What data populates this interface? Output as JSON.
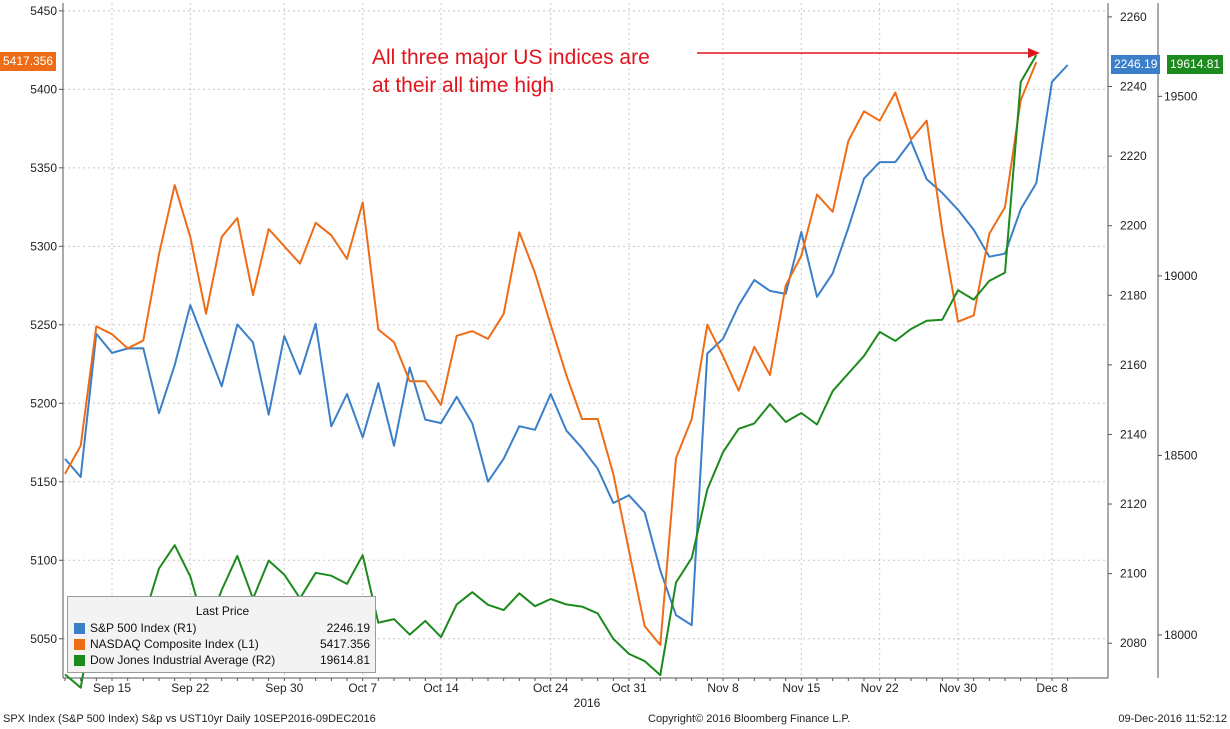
{
  "chart_data": {
    "type": "line",
    "x_tick_labels": [
      "Sep 15",
      "Sep 22",
      "Sep 30",
      "Oct 7",
      "Oct 14",
      "Oct 24",
      "Oct 31",
      "Nov 8",
      "Nov 15",
      "Nov 22",
      "Nov 30",
      "Dec 8"
    ],
    "x_tick_indices": [
      3,
      8,
      14,
      19,
      24,
      31,
      36,
      42,
      47,
      52,
      57,
      63
    ],
    "year_label": "2016",
    "axes": {
      "L1": {
        "ticks": [
          5050,
          5100,
          5150,
          5200,
          5250,
          5300,
          5350,
          5400,
          5450
        ],
        "range": [
          5025,
          5455
        ]
      },
      "R1": {
        "ticks": [
          2080,
          2100,
          2120,
          2140,
          2160,
          2180,
          2200,
          2220,
          2240,
          2260
        ],
        "range": [
          2070,
          2264
        ]
      },
      "R2": {
        "ticks": [
          18000,
          18500,
          19000,
          19500
        ],
        "range": [
          17880,
          19760
        ],
        "tick_labels": [
          "18000",
          "18500",
          "19000",
          "19500"
        ]
      }
    },
    "series": [
      {
        "name": "S&P 500 Index  (R1)",
        "axis": "R1",
        "color": "#3b7fc9",
        "last": "2246.19",
        "values": [
          2132.98,
          2127.77,
          2168.95,
          2163.45,
          2164.69,
          2164.79,
          2146.1,
          2159.93,
          2177.18,
          2165.45,
          2153.84,
          2171.61,
          2166.45,
          2145.69,
          2168.27,
          2157.33,
          2171.8,
          2142.35,
          2151.63,
          2139.18,
          2154.77,
          2136.73,
          2159.23,
          2144.28,
          2143.25,
          2150.82,
          2143.16,
          2126.41,
          2133.04,
          2142.37,
          2141.34,
          2151.63,
          2141.16,
          2136.08,
          2130.16,
          2120.29,
          2122.52,
          2117.56,
          2100.93,
          2088.08,
          2085.18,
          2163.26,
          2167.48,
          2177.12,
          2184.39,
          2181.25,
          2180.39,
          2198.18,
          2179.56,
          2186.3,
          2199.34,
          2213.53,
          2218.27,
          2218.27,
          2224.25,
          2213.35,
          2209.41,
          2204.55,
          2198.81,
          2191.08,
          2191.95,
          2204.71,
          2212.23,
          2241.35,
          2246.19
        ],
        "note": "values before last reconstructed from plotted line"
      },
      {
        "name": "NASDAQ Composite Index  (L1)",
        "axis": "L1",
        "color": "#ef6c16",
        "last": "5417.356",
        "values": [
          5155,
          5173,
          5249,
          5244,
          5235,
          5240,
          5295,
          5339,
          5306,
          5257,
          5306,
          5318,
          5269,
          5311,
          5300,
          5289,
          5315,
          5307,
          5292,
          5328,
          5247,
          5239,
          5214,
          5214,
          5199,
          5243,
          5246,
          5241,
          5257,
          5309,
          5283,
          5250,
          5218,
          5190,
          5190,
          5155,
          5106,
          5058,
          5046,
          5165,
          5190,
          5250,
          5230,
          5208,
          5236,
          5218,
          5275,
          5294,
          5333,
          5322,
          5367,
          5386,
          5380,
          5398,
          5368,
          5380,
          5310,
          5252,
          5256,
          5308,
          5325,
          5393,
          5417.356
        ],
        "note": "values before last reconstructed from plotted line"
      },
      {
        "name": "Dow Jones Industrial Average  (R2)",
        "axis": "R2",
        "color": "#1c8a1c",
        "last": "19614.81",
        "values": [
          17890,
          17853,
          18097,
          18036,
          18034,
          18042,
          18185,
          18250,
          18163,
          18010,
          18125,
          18220,
          18101,
          18207,
          18168,
          18102,
          18173,
          18165,
          18142,
          18222,
          18034,
          18044,
          18001,
          18039,
          17994,
          18085,
          18119,
          18084,
          18069,
          18116,
          18080,
          18100,
          18085,
          18079,
          18060,
          17989,
          17947,
          17927,
          17888,
          18146,
          18214,
          18405,
          18509,
          18574,
          18589,
          18643,
          18593,
          18618,
          18586,
          18679,
          18728,
          18777,
          18844,
          18819,
          18852,
          18875,
          18878,
          18960,
          18934,
          18986,
          19009,
          19540,
          19614.81
        ],
        "note": "values before last reconstructed from plotted line"
      }
    ]
  },
  "legend": {
    "title": "Last Price",
    "rows": [
      {
        "name": "S&P 500 Index  (R1)",
        "value": "2246.19",
        "color": "#3b7fc9"
      },
      {
        "name": "NASDAQ Composite Index  (L1)",
        "value": "5417.356",
        "color": "#ef6c16"
      },
      {
        "name": "Dow Jones Industrial Average  (R2)",
        "value": "19614.81",
        "color": "#1c8a1c"
      }
    ]
  },
  "annotation": {
    "line1": "All three major US indices are",
    "line2": "at their all time high",
    "color": "#e0141c"
  },
  "price_tags": {
    "nasdaq": {
      "text": "5417.356",
      "color": "#ef6c16"
    },
    "spx": {
      "text": "2246.19",
      "color": "#3b7fc9"
    },
    "dow": {
      "text": "19614.81",
      "color": "#1c8a1c"
    }
  },
  "footer": {
    "left": "SPX Index (S&P 500 Index) S&p vs UST10yr  Daily 10SEP2016-09DEC2016",
    "center": "Copyright© 2016 Bloomberg Finance L.P.",
    "right": "09-Dec-2016 11:52:12"
  }
}
